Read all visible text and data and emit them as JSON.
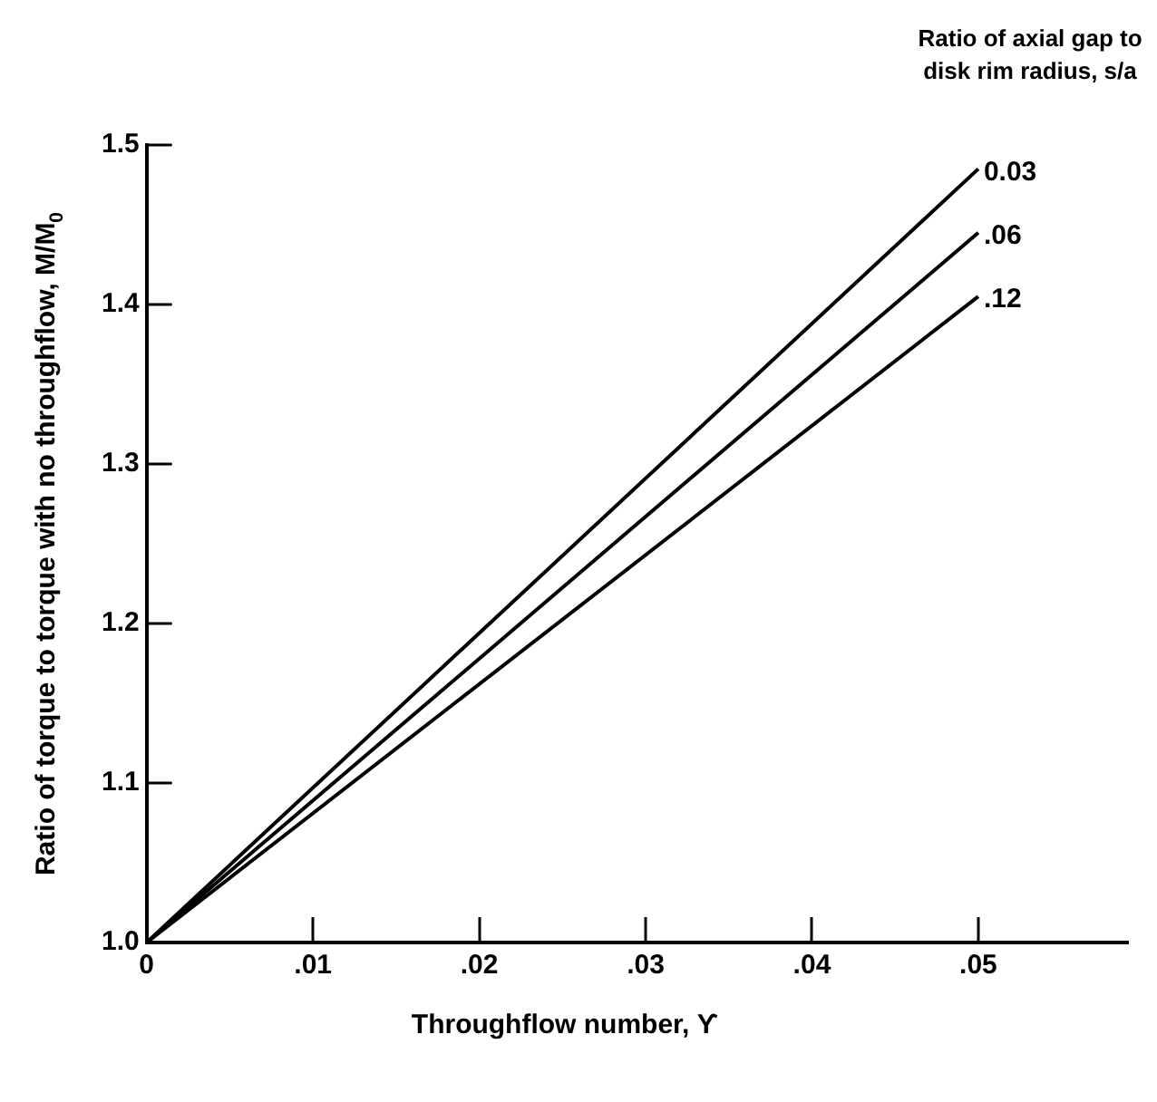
{
  "chart_data": {
    "type": "line",
    "xlabel": "Throughflow number, ϒ",
    "ylabel": "Ratio of torque to torque with no throughflow, M/M$_{0}$",
    "legend_title": "Ratio of axial gap to disk rim radius, s/a",
    "x": [
      0,
      0.05
    ],
    "series": [
      {
        "name": "0.03",
        "color": "#000000",
        "values": [
          1.0,
          1.485
        ]
      },
      {
        "name": ".06",
        "color": "#000000",
        "values": [
          1.0,
          1.445
        ]
      },
      {
        "name": ".12",
        "color": "#000000",
        "values": [
          1.0,
          1.405
        ]
      }
    ],
    "xlim": [
      0,
      0.059
    ],
    "xticks": [
      0,
      {
        "value": 0.01,
        "label": ".01"
      },
      {
        "value": 0.02,
        "label": ".02"
      },
      {
        "value": 0.03,
        "label": ".03"
      },
      {
        "value": 0.04,
        "label": ".04"
      },
      {
        "value": 0.05,
        "label": ".05"
      }
    ],
    "ylim": [
      1.0,
      1.5
    ],
    "yticks": [
      {
        "value": 1.0,
        "label": "1.0"
      },
      {
        "value": 1.1,
        "label": "1.1"
      },
      {
        "value": 1.2,
        "label": "1.2"
      },
      {
        "value": 1.3,
        "label": "1.3"
      },
      {
        "value": 1.4,
        "label": "1.4"
      },
      {
        "value": 1.5,
        "label": "1.5"
      }
    ],
    "grid": false,
    "legend": false,
    "marker": "none",
    "line_style": "solid"
  }
}
